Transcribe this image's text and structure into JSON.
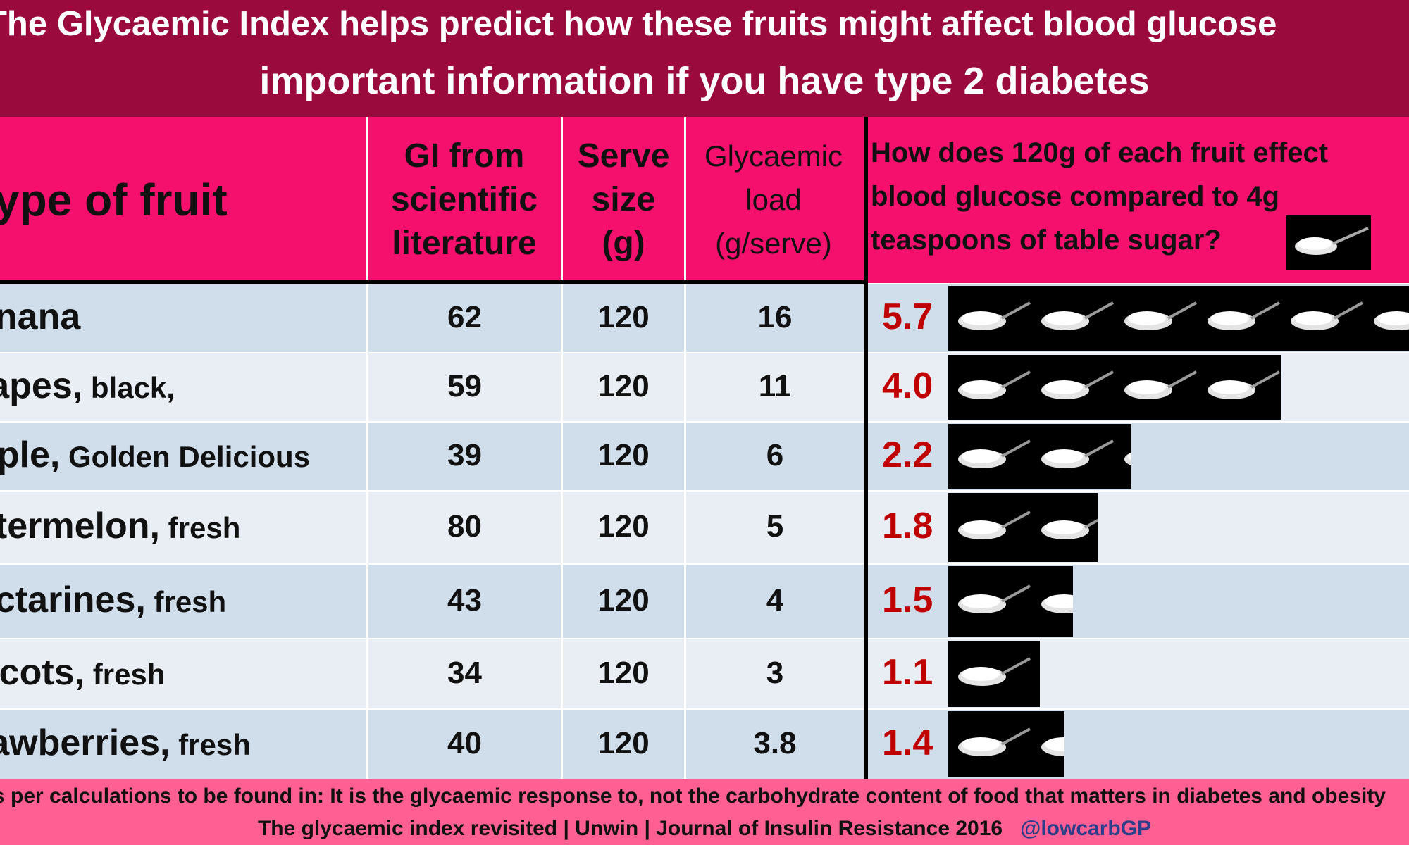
{
  "title": {
    "line1": "The Glycaemic Index helps predict how these fruits might affect blood glucose",
    "line2": "important information if you have type 2 diabetes"
  },
  "columns": {
    "fruit": "ype of fruit",
    "gi": [
      "GI from",
      "scientific",
      "literature"
    ],
    "serve": [
      "Serve",
      "size",
      "(g)"
    ],
    "gl": [
      "Glycaemic",
      "load",
      "(g/serve)"
    ],
    "compare": [
      "How does 120g of each fruit effect",
      "blood glucose compared to 4g",
      "teaspoons of table sugar?"
    ]
  },
  "rows": [
    {
      "fruit": "anana",
      "qualifier": "",
      "gi": "62",
      "serve": "120",
      "gl": "16",
      "teaspoons": "5.7",
      "teaspoons_value": 5.7
    },
    {
      "fruit": "rapes,",
      "qualifier": " black,",
      "gi": "59",
      "serve": "120",
      "gl": "11",
      "teaspoons": "4.0",
      "teaspoons_value": 4.0
    },
    {
      "fruit": "pple,",
      "qualifier": " Golden Delicious",
      "gi": "39",
      "serve": "120",
      "gl": "6",
      "teaspoons": "2.2",
      "teaspoons_value": 2.2
    },
    {
      "fruit": "atermelon,",
      "qualifier": " fresh",
      "gi": "80",
      "serve": "120",
      "gl": "5",
      "teaspoons": "1.8",
      "teaspoons_value": 1.8
    },
    {
      "fruit": "ectarines,",
      "qualifier": " fresh",
      "gi": "43",
      "serve": "120",
      "gl": "4",
      "teaspoons": "1.5",
      "teaspoons_value": 1.5
    },
    {
      "fruit": "ricots,",
      "qualifier": " fresh",
      "gi": "34",
      "serve": "120",
      "gl": "3",
      "teaspoons": "1.1",
      "teaspoons_value": 1.1
    },
    {
      "fruit": "rawberries,",
      "qualifier": " fresh",
      "gi": "40",
      "serve": "120",
      "gl": "3.8",
      "teaspoons": "1.4",
      "teaspoons_value": 1.4
    }
  ],
  "footer": {
    "line1": "s per calculations to be found in: It is the glycaemic response to, not the carbohydrate content of food that matters in diabetes and obesity",
    "line2": "The glycaemic index revisited | Unwin | Journal of Insulin Resistance 2016",
    "handle": "@lowcarbGP"
  },
  "icons": {
    "teaspoon": "teaspoon-sugar-icon"
  },
  "colors": {
    "header": "#9a0a3c",
    "table_header": "#f5106e",
    "ratio_text": "#c00000",
    "footer": "#ff5f93"
  }
}
